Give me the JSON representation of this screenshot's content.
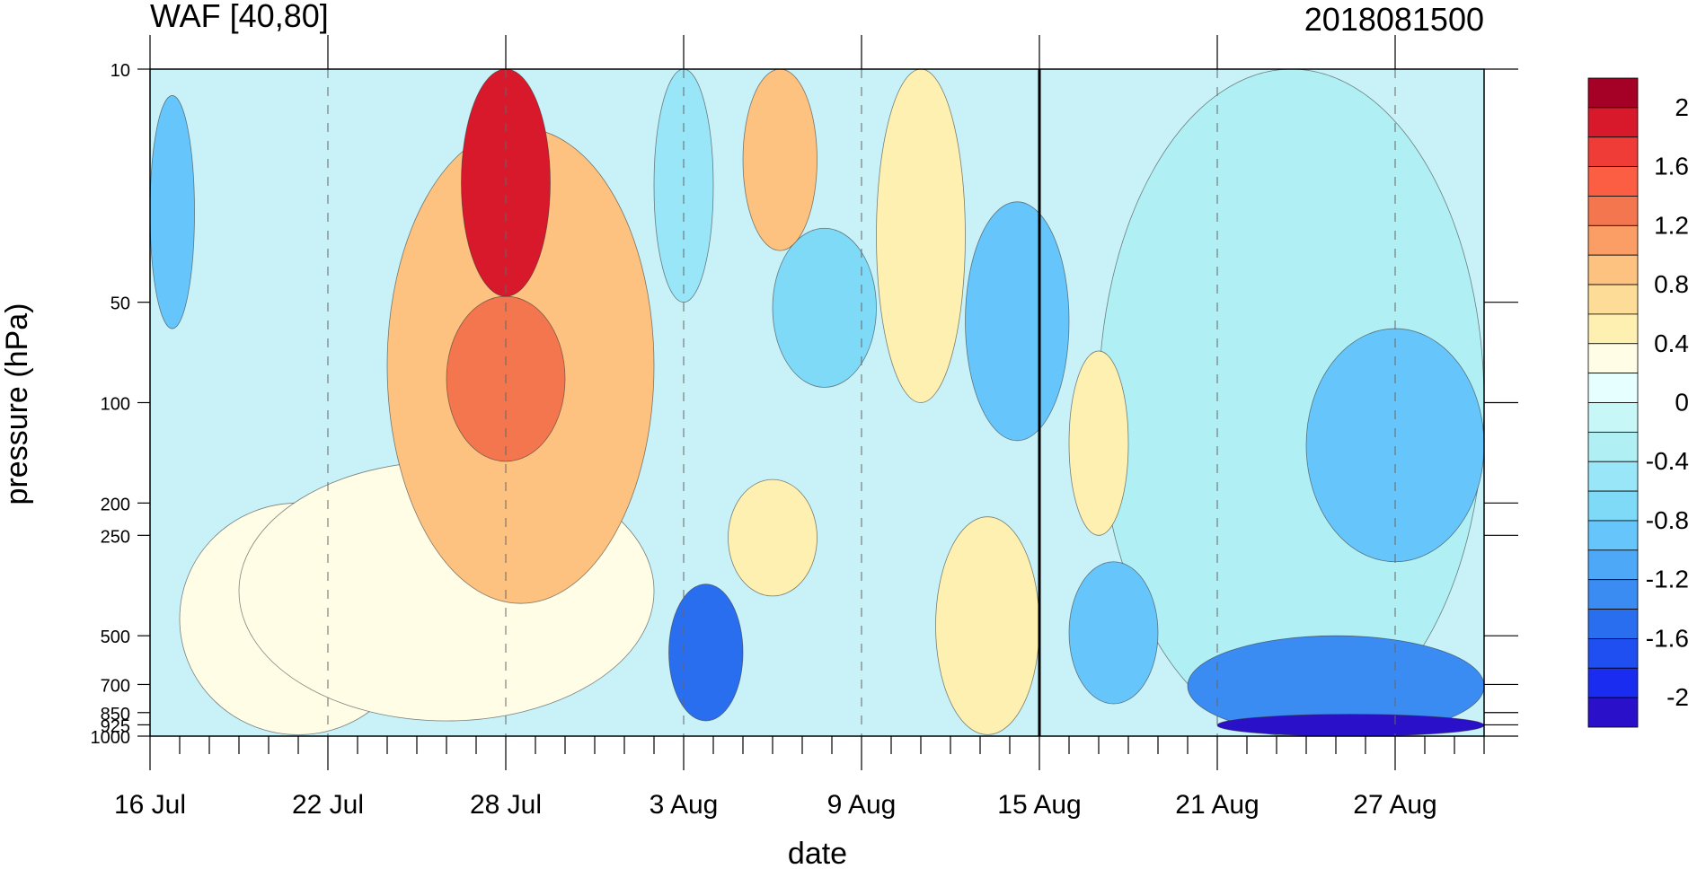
{
  "chart_data": {
    "type": "heatmap",
    "title_left": "WAF [40,80]",
    "title_right": "2018081500",
    "xlabel": "date",
    "ylabel": "pressure (hPa)",
    "x_ticks": [
      {
        "label": "16 Jul",
        "day": 0
      },
      {
        "label": "22 Jul",
        "day": 6
      },
      {
        "label": "28 Jul",
        "day": 12
      },
      {
        "label": "3 Aug",
        "day": 18
      },
      {
        "label": "9 Aug",
        "day": 24
      },
      {
        "label": "15 Aug",
        "day": 30
      },
      {
        "label": "21 Aug",
        "day": 36
      },
      {
        "label": "27 Aug",
        "day": 42
      }
    ],
    "x_range_days": [
      0,
      45
    ],
    "y_scale": "log",
    "y_range": [
      1000,
      10
    ],
    "y_ticks": [
      {
        "label": "10",
        "p": 10
      },
      {
        "label": "50",
        "p": 50
      },
      {
        "label": "100",
        "p": 100
      },
      {
        "label": "200",
        "p": 200
      },
      {
        "label": "250",
        "p": 250
      },
      {
        "label": "500",
        "p": 500
      },
      {
        "label": "700",
        "p": 700
      },
      {
        "label": "850",
        "p": 850
      },
      {
        "label": "925",
        "p": 925
      },
      {
        "label": "1000",
        "p": 1000
      }
    ],
    "analysis_line": "15 Aug",
    "colorbar": {
      "labels": [
        "2",
        "1.6",
        "1.2",
        "0.8",
        "0.4",
        "0",
        "-0.4",
        "-0.8",
        "-1.2",
        "-1.6",
        "-2"
      ],
      "colors": [
        "#a50026",
        "#d7192b",
        "#f03c36",
        "#fc5e43",
        "#f4764e",
        "#fa9e65",
        "#fdc280",
        "#fddc98",
        "#fef0b0",
        "#fffde6",
        "#e6ffff",
        "#c7f7f7",
        "#b0f0f5",
        "#98e6f8",
        "#7fdaf8",
        "#66c6fb",
        "#4da8f8",
        "#3a8cf2",
        "#2a6ef0",
        "#1f4ff0",
        "#1a2cf0",
        "#2a10c8"
      ]
    },
    "grid": true,
    "legend_position": "right",
    "regions": [
      {
        "name": "strong-positive-core-28Jul",
        "day_start": 10.5,
        "day_end": 13.5,
        "p_top": 10,
        "p_bottom": 48,
        "value": 2.0
      },
      {
        "name": "positive-upper-28Jul",
        "day_start": 10,
        "day_end": 14,
        "p_top": 48,
        "p_bottom": 150,
        "value": 1.4
      },
      {
        "name": "positive-broad-late-Jul",
        "day_start": 8,
        "day_end": 17,
        "p_top": 15,
        "p_bottom": 400,
        "value": 0.9
      },
      {
        "name": "positive-lower-late-Jul",
        "day_start": 3,
        "day_end": 17,
        "p_top": 150,
        "p_bottom": 900,
        "value": 0.4
      },
      {
        "name": "positive-lower-Jul",
        "day_start": 1,
        "day_end": 9,
        "p_top": 200,
        "p_bottom": 990,
        "value": 0.25
      },
      {
        "name": "positive-upper-6Aug",
        "day_start": 20,
        "day_end": 22.5,
        "p_top": 10,
        "p_bottom": 35,
        "value": 0.9
      },
      {
        "name": "positive-lower-6Aug",
        "day_start": 19.5,
        "day_end": 22.5,
        "p_top": 170,
        "p_bottom": 380,
        "value": 0.6
      },
      {
        "name": "positive-upper-11Aug",
        "day_start": 24.5,
        "day_end": 27.5,
        "p_top": 10,
        "p_bottom": 100,
        "value": 0.5
      },
      {
        "name": "positive-mid-12Aug",
        "day_start": 26.5,
        "day_end": 30,
        "p_top": 220,
        "p_bottom": 990,
        "value": 0.5
      },
      {
        "name": "positive-17Aug",
        "day_start": 31,
        "day_end": 33,
        "p_top": 70,
        "p_bottom": 250,
        "value": 0.45
      },
      {
        "name": "negative-upper-early",
        "day_start": 0,
        "day_end": 1.5,
        "p_top": 12,
        "p_bottom": 60,
        "value": -0.9
      },
      {
        "name": "negative-upper-3Aug",
        "day_start": 17,
        "day_end": 19,
        "p_top": 10,
        "p_bottom": 50,
        "value": -0.5
      },
      {
        "name": "negative-upper-9Aug",
        "day_start": 27.5,
        "day_end": 31,
        "p_top": 25,
        "p_bottom": 130,
        "value": -0.9
      },
      {
        "name": "negative-upper-7Aug",
        "day_start": 21,
        "day_end": 24.5,
        "p_top": 30,
        "p_bottom": 90,
        "value": -0.8
      },
      {
        "name": "negative-core-4Aug",
        "day_start": 17.5,
        "day_end": 20,
        "p_top": 350,
        "p_bottom": 900,
        "value": -1.5
      },
      {
        "name": "negative-lower-17Aug",
        "day_start": 31,
        "day_end": 34,
        "p_top": 300,
        "p_bottom": 800,
        "value": -0.9
      },
      {
        "name": "negative-broad-late-Aug",
        "day_start": 32,
        "day_end": 45,
        "p_top": 10,
        "p_bottom": 1000,
        "value": -0.4
      },
      {
        "name": "negative-upper-late-Aug",
        "day_start": 39,
        "day_end": 45,
        "p_top": 60,
        "p_bottom": 300,
        "value": -0.9
      },
      {
        "name": "negative-lower-late-Aug",
        "day_start": 35,
        "day_end": 45,
        "p_top": 500,
        "p_bottom": 1000,
        "value": -1.4
      },
      {
        "name": "negative-surface-late-Aug",
        "day_start": 36,
        "day_end": 45,
        "p_top": 860,
        "p_bottom": 1000,
        "value": -2.1
      }
    ]
  }
}
